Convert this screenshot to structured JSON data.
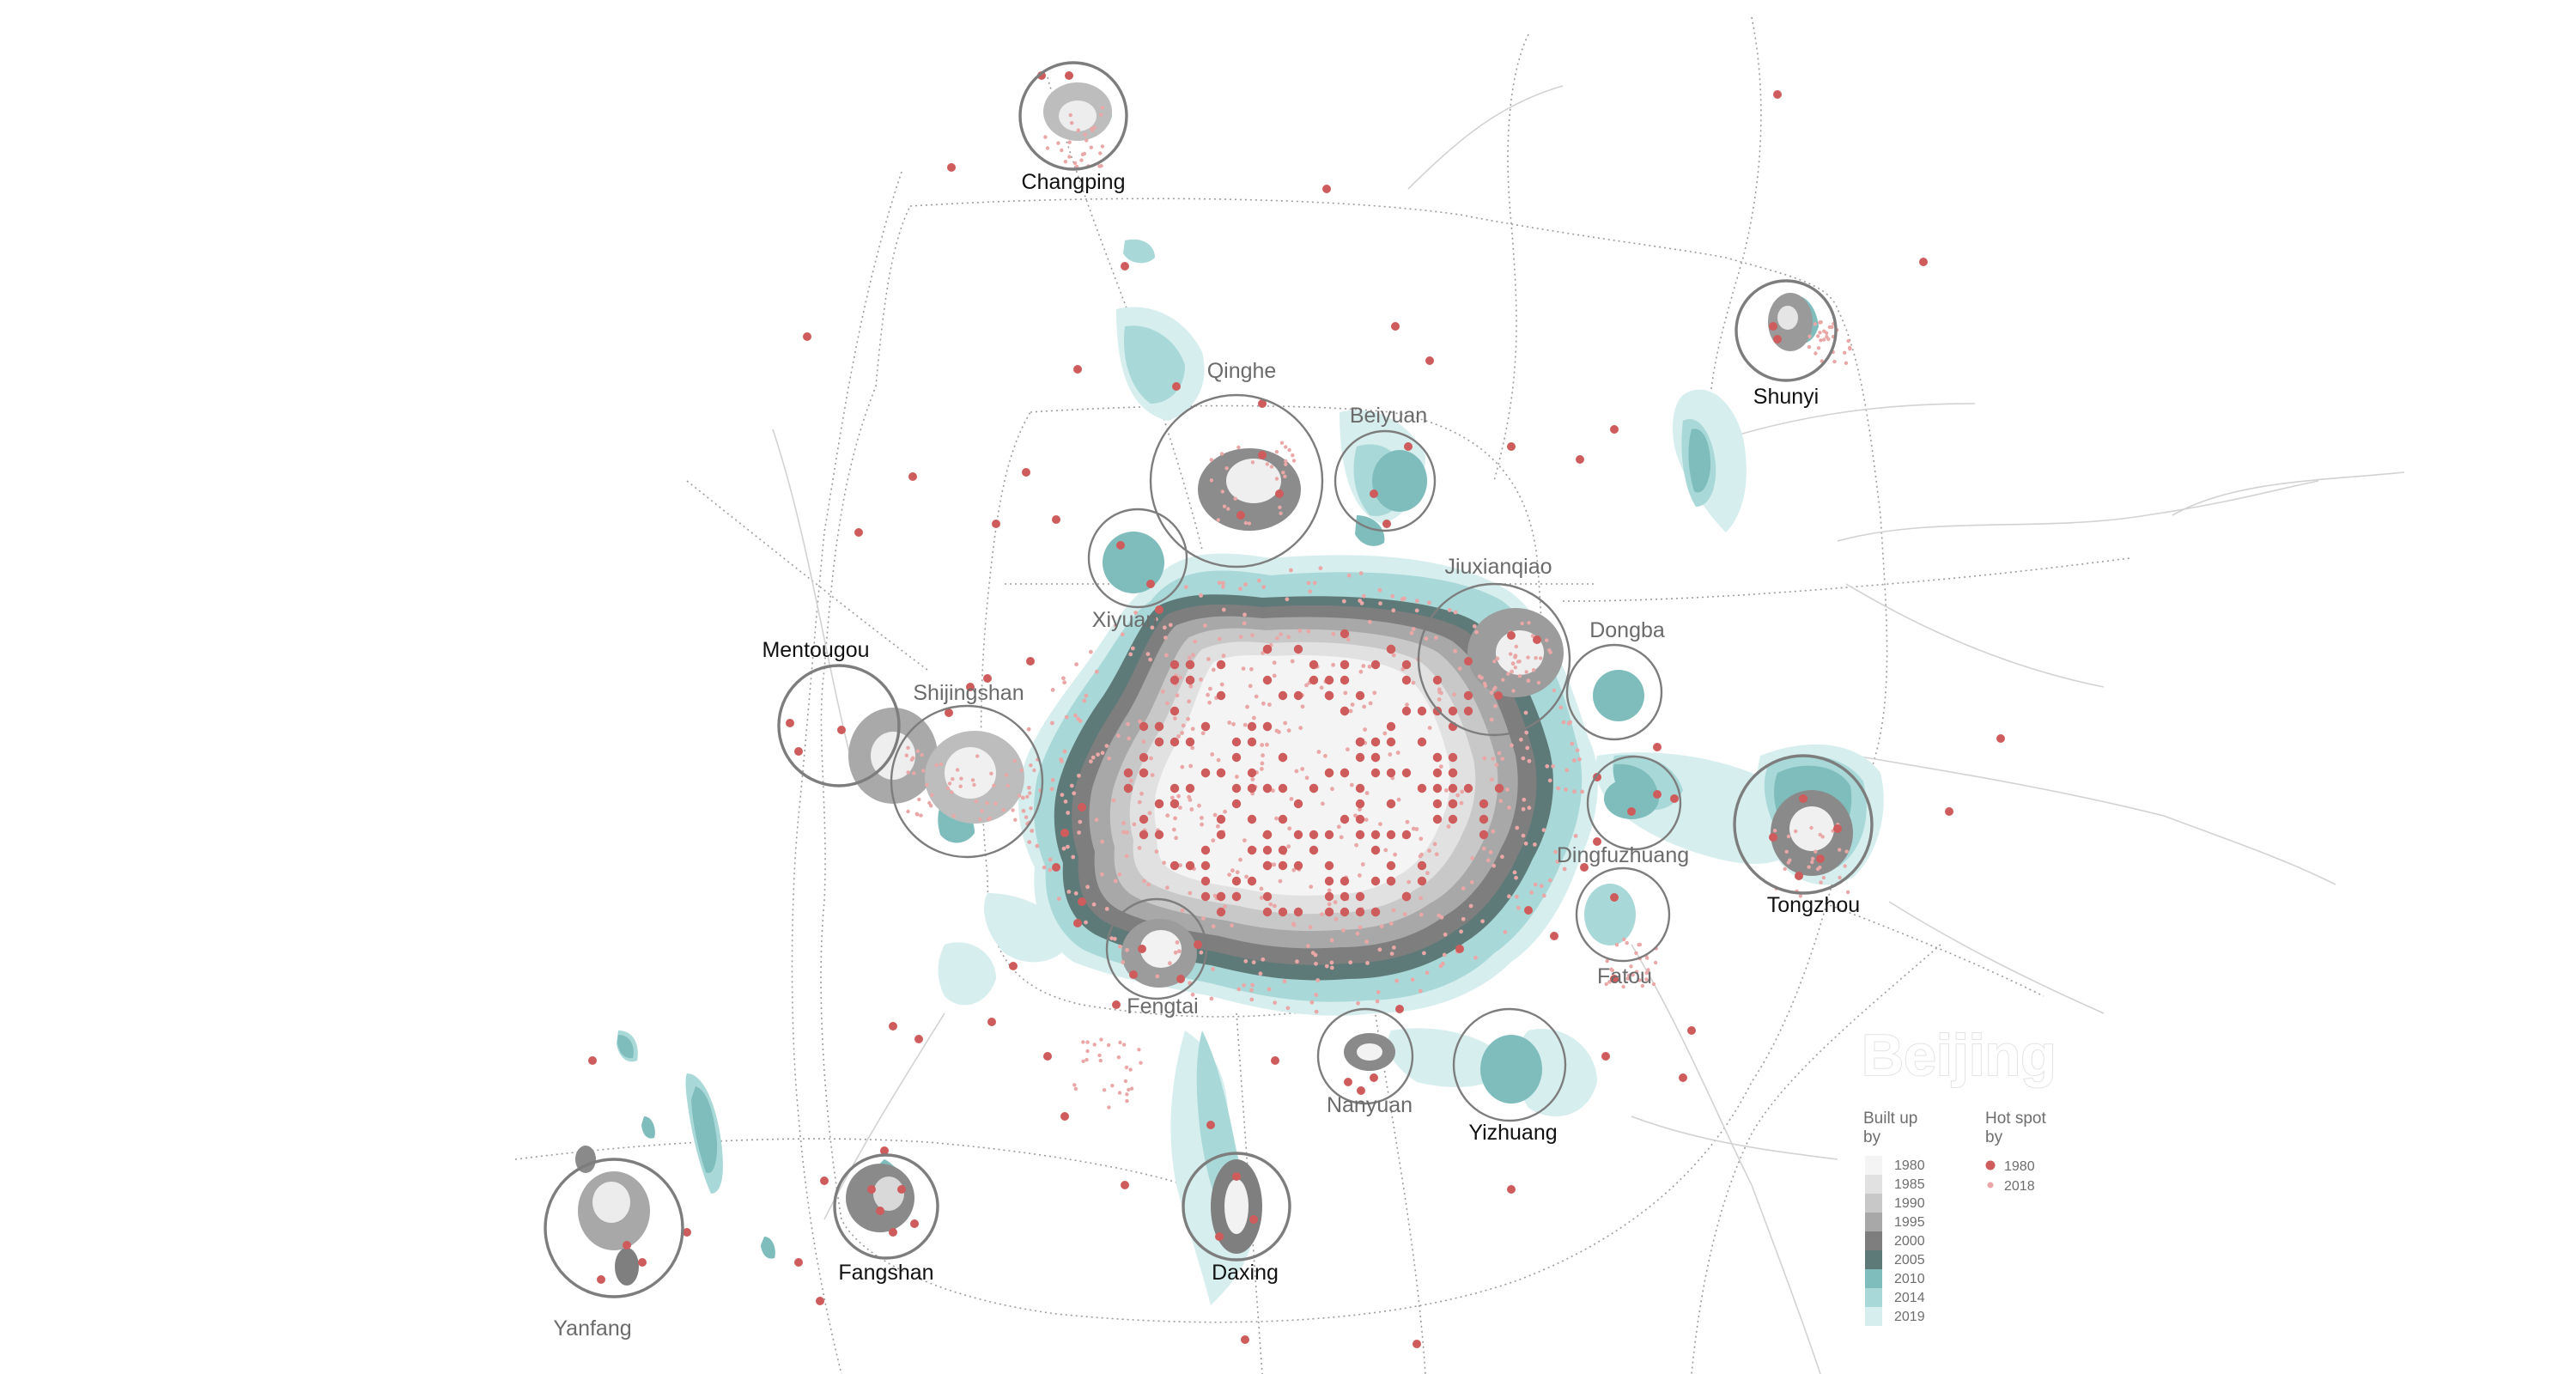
{
  "map": {
    "title": "Beijing",
    "palette": {
      "built_1980": "#f4f4f4",
      "built_1985": "#e1e1e1",
      "built_1990": "#c8c8c8",
      "built_1995": "#a8a8a8",
      "built_2000": "#7e7e7e",
      "built_2005": "#5e7a78",
      "built_2010": "#7fbdbd",
      "built_2014": "#a9d8d8",
      "built_2019": "#d6eeee",
      "hotspot_1980": "#cf5c5c",
      "hotspot_2018": "#e9a7a7",
      "road": "#b9b9b9",
      "ring": "#7d7d7d"
    },
    "places": [
      {
        "name": "Changping",
        "style": "major"
      },
      {
        "name": "Shunyi",
        "style": "major"
      },
      {
        "name": "Qinghe",
        "style": "minor"
      },
      {
        "name": "Beiyuan",
        "style": "minor"
      },
      {
        "name": "Xiyuan",
        "style": "minor"
      },
      {
        "name": "Jiuxianqiao",
        "style": "minor"
      },
      {
        "name": "Dongba",
        "style": "minor"
      },
      {
        "name": "Mentougou",
        "style": "major"
      },
      {
        "name": "Shijingshan",
        "style": "minor"
      },
      {
        "name": "Tongzhou",
        "style": "major"
      },
      {
        "name": "Dingfuzhuang",
        "style": "minor"
      },
      {
        "name": "Fatou",
        "style": "minor"
      },
      {
        "name": "Fengtai",
        "style": "minor"
      },
      {
        "name": "Nanyuan",
        "style": "minor"
      },
      {
        "name": "Yizhuang",
        "style": "major"
      },
      {
        "name": "Fangshan",
        "style": "major"
      },
      {
        "name": "Daxing",
        "style": "major"
      },
      {
        "name": "Yanfang",
        "style": "minor"
      }
    ]
  },
  "legend": {
    "built_up_heading": [
      "Built up",
      "by"
    ],
    "hot_spot_heading": [
      "Hot spot",
      "by"
    ],
    "built_up_years": [
      "1980",
      "1985",
      "1990",
      "1995",
      "2000",
      "2005",
      "2010",
      "2014",
      "2019"
    ],
    "hot_spot_years": [
      "1980",
      "2018"
    ]
  }
}
